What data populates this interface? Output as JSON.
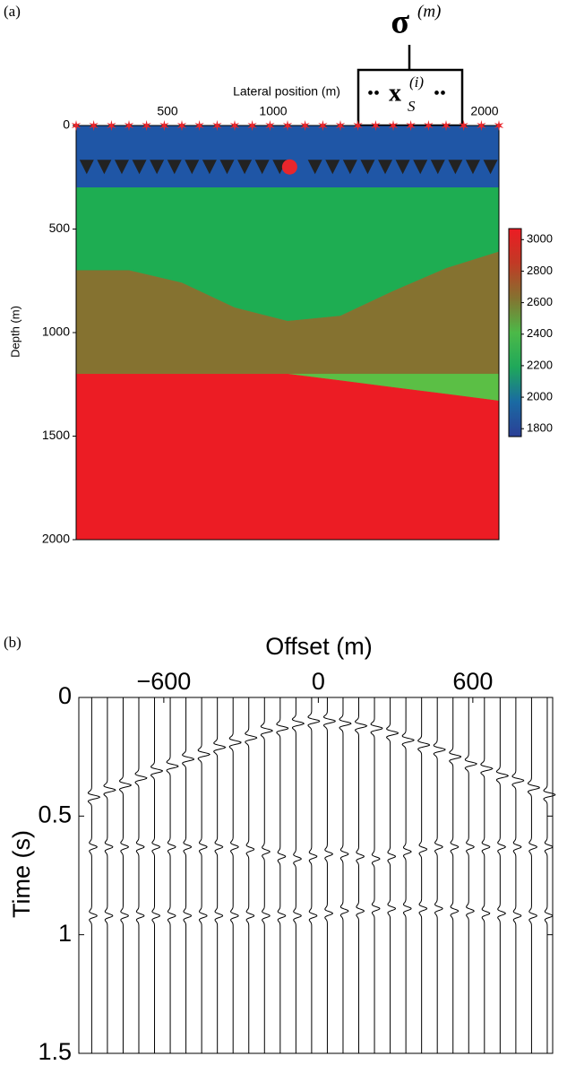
{
  "chart_data": [
    {
      "type": "model",
      "panel_label": "(a)",
      "xlabel": "Lateral position (m)",
      "ylabel": "Depth (m)",
      "xlim": [
        0,
        2000
      ],
      "xticks": [
        500,
        1000,
        2000
      ],
      "ylim": [
        0,
        2000
      ],
      "yticks": [
        0,
        500,
        1000,
        1500,
        2000
      ],
      "x_grid": [
        0,
        250,
        500,
        750,
        1000,
        1250,
        1500,
        1750,
        2000
      ],
      "layers": [
        {
          "color": "#1f56a6",
          "velocity": 1800,
          "top": [
            0,
            0,
            0,
            0,
            0,
            0,
            0,
            0,
            0
          ],
          "bottom": [
            300,
            300,
            300,
            300,
            300,
            300,
            300,
            300,
            300
          ]
        },
        {
          "color": "#1ead52",
          "velocity": 2450,
          "top": [
            300,
            300,
            300,
            300,
            300,
            300,
            300,
            300,
            300
          ],
          "bottom": [
            700,
            700,
            760,
            880,
            945,
            920,
            800,
            690,
            610
          ]
        },
        {
          "color": "#857230",
          "velocity": 2700,
          "top": [
            700,
            700,
            760,
            880,
            945,
            920,
            800,
            690,
            610
          ],
          "bottom": [
            1200,
            1200,
            1200,
            1200,
            1200,
            1200,
            1200,
            1200,
            1200
          ]
        },
        {
          "color": "#5bbf45",
          "velocity": 2550,
          "top": [
            1200,
            1200,
            1200,
            1200,
            1200,
            1200,
            1200,
            1200,
            1200
          ],
          "bottom": [
            1200,
            1200,
            1200,
            1200,
            1200,
            1232,
            1265,
            1297,
            1330
          ]
        },
        {
          "color": "#ec1c24",
          "velocity": 3000,
          "top": [
            1200,
            1200,
            1200,
            1200,
            1200,
            1232,
            1265,
            1297,
            1330
          ],
          "bottom": [
            2000,
            2000,
            2000,
            2000,
            2000,
            2000,
            2000,
            2000,
            2000
          ]
        }
      ],
      "colorbar": {
        "lim": [
          1750,
          3070
        ],
        "ticks": [
          1800,
          2000,
          2200,
          2400,
          2600,
          2800,
          3000
        ],
        "colors": [
          "#2b3f96",
          "#1a6aa3",
          "#1fa85a",
          "#4cb948",
          "#857230",
          "#c13a25",
          "#ec1c24"
        ]
      },
      "sources": {
        "color": "#e8262c",
        "depth": 0,
        "x": [
          0,
          83,
          167,
          250,
          333,
          417,
          500,
          583,
          667,
          750,
          833,
          917,
          1000,
          1083,
          1167,
          1250,
          1333,
          1417,
          1500,
          1583,
          1667,
          1750,
          1833,
          1917,
          2000
        ]
      },
      "receivers": {
        "color": "#222222",
        "depth": 200,
        "x": [
          50,
          133,
          216,
          299,
          382,
          465,
          548,
          631,
          714,
          797,
          880,
          963,
          1130,
          1213,
          1296,
          1379,
          1462,
          1545,
          1628,
          1711,
          1794,
          1877,
          1960
        ]
      },
      "active_source": {
        "color": "#e8262c",
        "x": 1010,
        "depth": 200
      },
      "operator": {
        "symbol": "σ",
        "superscript": "(m)"
      },
      "box": {
        "prefix": "••",
        "symbol": "x",
        "subscript": "S",
        "superscript": "(i)",
        "suffix": "••"
      }
    },
    {
      "type": "wiggle",
      "panel_label": "(b)",
      "xlabel": "Offset (m)",
      "ylabel": "Time (s)",
      "color": "#000000",
      "xlim": [
        -930,
        910
      ],
      "xticks": [
        {
          "value": -600,
          "label": "−600"
        },
        0,
        600
      ],
      "ylim": [
        0,
        1.5
      ],
      "yticks": [
        0,
        0.5,
        1,
        1.5
      ],
      "offsets": [
        -880,
        -819,
        -758,
        -697,
        -636,
        -575,
        -514,
        -453,
        -392,
        -331,
        -270,
        -209,
        -148,
        -87,
        -26,
        35,
        96,
        157,
        218,
        279,
        340,
        401,
        462,
        523,
        584,
        645,
        706,
        767,
        828,
        889
      ],
      "arrivals": [
        [
          0.42,
          0.39,
          0.37,
          0.34,
          0.31,
          0.29,
          0.26,
          0.24,
          0.21,
          0.19,
          0.17,
          0.14,
          0.13,
          0.11,
          0.1,
          0.1,
          0.11,
          0.12,
          0.13,
          0.15,
          0.18,
          0.2,
          0.22,
          0.25,
          0.28,
          0.3,
          0.33,
          0.35,
          0.38,
          0.41
        ],
        [
          0.63,
          0.63,
          0.63,
          0.63,
          0.63,
          0.63,
          0.63,
          0.63,
          0.63,
          0.63,
          0.64,
          0.65,
          0.67,
          0.68,
          0.67,
          0.66,
          0.66,
          0.67,
          0.68,
          0.67,
          0.65,
          0.64,
          0.63,
          0.63,
          0.63,
          0.63,
          0.63,
          0.63,
          0.63,
          0.63
        ],
        [
          0.92,
          0.92,
          0.92,
          0.92,
          0.92,
          0.92,
          0.92,
          0.92,
          0.92,
          0.92,
          0.92,
          0.92,
          0.92,
          0.92,
          0.92,
          0.91,
          0.9,
          0.9,
          0.89,
          0.89,
          0.89,
          0.89,
          0.89,
          0.9,
          0.9,
          0.91,
          0.91,
          0.92,
          0.92,
          0.92
        ]
      ]
    }
  ]
}
